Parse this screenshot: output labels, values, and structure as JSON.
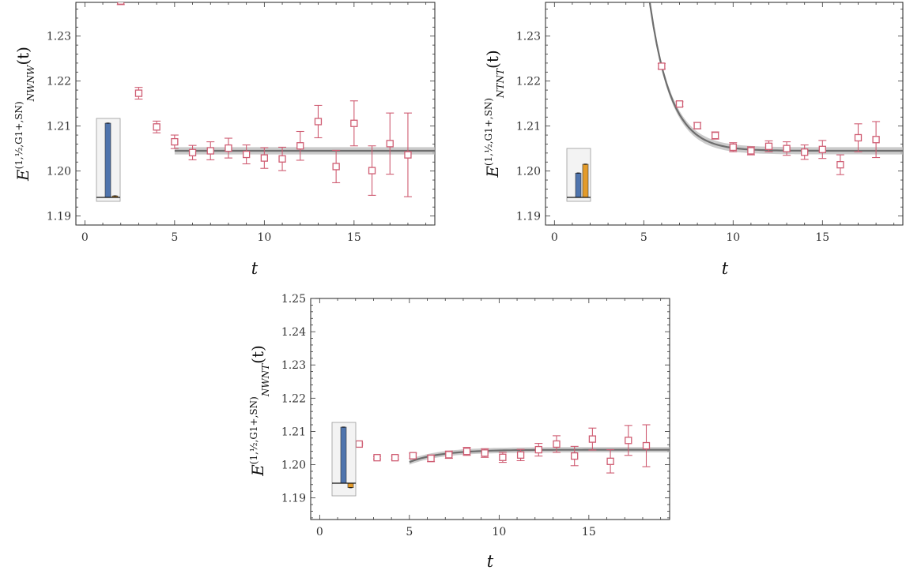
{
  "chart_data": [
    {
      "type": "scatter",
      "title": "",
      "xlabel": "t",
      "ylabel": "E",
      "ylabel_sub": "NWNW",
      "ylabel_sup": "(1,½,G1+,SN)",
      "ylabel_arg": "(t)",
      "xlim": [
        -0.5,
        19.5
      ],
      "ylim": [
        1.188,
        1.2375
      ],
      "xticks": [
        0,
        5,
        10,
        15
      ],
      "xtick_labels": [
        "0",
        "5",
        "10",
        "15"
      ],
      "yticks": [
        1.19,
        1.2,
        1.21,
        1.22,
        1.23
      ],
      "ytick_labels": [
        "1.19",
        "1.20",
        "1.21",
        "1.22",
        "1.23"
      ],
      "points": [
        {
          "x": 2,
          "y": 1.2378,
          "err": 0.0008
        },
        {
          "x": 3,
          "y": 1.2173,
          "err": 0.0013
        },
        {
          "x": 4,
          "y": 1.2098,
          "err": 0.0013
        },
        {
          "x": 5,
          "y": 1.2065,
          "err": 0.0015
        },
        {
          "x": 6,
          "y": 1.2041,
          "err": 0.0016
        },
        {
          "x": 7,
          "y": 1.2045,
          "err": 0.002
        },
        {
          "x": 8,
          "y": 1.2051,
          "err": 0.0022
        },
        {
          "x": 9,
          "y": 1.2037,
          "err": 0.0021
        },
        {
          "x": 10,
          "y": 1.2029,
          "err": 0.0023
        },
        {
          "x": 11,
          "y": 1.2027,
          "err": 0.0026
        },
        {
          "x": 12,
          "y": 1.2056,
          "err": 0.0032
        },
        {
          "x": 13,
          "y": 1.211,
          "err": 0.0036
        },
        {
          "x": 14,
          "y": 1.201,
          "err": 0.0036
        },
        {
          "x": 15,
          "y": 1.2106,
          "err": 0.005
        },
        {
          "x": 16,
          "y": 1.2001,
          "err": 0.0055
        },
        {
          "x": 17,
          "y": 1.2061,
          "err": 0.0068
        },
        {
          "x": 18,
          "y": 1.2036,
          "err": 0.0093
        }
      ],
      "fit": {
        "kind": "plateau",
        "x_start": 5,
        "x_end": 19.5,
        "value": 1.2045,
        "band": 0.0008
      },
      "inset": {
        "bars": [
          {
            "value": 1.0,
            "color": "#4f74ad"
          },
          {
            "value": 0.02,
            "color": "#e39b2a"
          }
        ]
      }
    },
    {
      "type": "scatter",
      "title": "",
      "xlabel": "t",
      "ylabel": "E",
      "ylabel_sub": "NTNT",
      "ylabel_sup": "(1,½,G1+,SN)",
      "ylabel_arg": "(t)",
      "xlim": [
        -0.5,
        19.5
      ],
      "ylim": [
        1.188,
        1.2375
      ],
      "xticks": [
        0,
        5,
        10,
        15
      ],
      "xtick_labels": [
        "0",
        "5",
        "10",
        "15"
      ],
      "yticks": [
        1.19,
        1.2,
        1.21,
        1.22,
        1.23
      ],
      "ytick_labels": [
        "1.19",
        "1.20",
        "1.21",
        "1.22",
        "1.23"
      ],
      "points": [
        {
          "x": 6,
          "y": 1.2233,
          "err": 0.0006
        },
        {
          "x": 7,
          "y": 1.2149,
          "err": 0.0005
        },
        {
          "x": 8,
          "y": 1.2101,
          "err": 0.0007
        },
        {
          "x": 9,
          "y": 1.2079,
          "err": 0.0008
        },
        {
          "x": 10,
          "y": 1.2053,
          "err": 0.001
        },
        {
          "x": 11,
          "y": 1.2045,
          "err": 0.0009
        },
        {
          "x": 12,
          "y": 1.2055,
          "err": 0.0012
        },
        {
          "x": 13,
          "y": 1.205,
          "err": 0.0015
        },
        {
          "x": 14,
          "y": 1.2042,
          "err": 0.0016
        },
        {
          "x": 15,
          "y": 1.2048,
          "err": 0.002
        },
        {
          "x": 16,
          "y": 1.2014,
          "err": 0.0022
        },
        {
          "x": 17,
          "y": 1.2074,
          "err": 0.0031
        },
        {
          "x": 18,
          "y": 1.207,
          "err": 0.004
        }
      ],
      "fit": {
        "kind": "decay",
        "x_start": 5,
        "x_end": 19.5,
        "plateau": 1.2045,
        "amp": 0.0188,
        "t0": 6,
        "tau": 1.18,
        "band": 0.0008
      },
      "inset": {
        "bars": [
          {
            "value": 0.55,
            "color": "#4f74ad"
          },
          {
            "value": 0.75,
            "color": "#e39b2a"
          }
        ]
      }
    },
    {
      "type": "scatter",
      "title": "",
      "xlabel": "t",
      "ylabel": "E",
      "ylabel_sub": "NWNT",
      "ylabel_sup": "(1,½,G1+,SN)",
      "ylabel_arg": "(t)",
      "xlim": [
        -0.5,
        19.5
      ],
      "ylim": [
        1.1835,
        1.25
      ],
      "xticks": [
        0,
        5,
        10,
        15
      ],
      "xtick_labels": [
        "0",
        "5",
        "10",
        "15"
      ],
      "yticks": [
        1.19,
        1.2,
        1.21,
        1.22,
        1.23,
        1.24,
        1.25
      ],
      "ytick_labels": [
        "1.19",
        "1.20",
        "1.21",
        "1.22",
        "1.23",
        "1.24",
        "1.25"
      ],
      "points": [
        {
          "x": 2.2,
          "y": 1.2062,
          "err": 0.0003
        },
        {
          "x": 3.2,
          "y": 1.2021,
          "err": 0.0004
        },
        {
          "x": 4.2,
          "y": 1.2021,
          "err": 0.0005
        },
        {
          "x": 5.2,
          "y": 1.2027,
          "err": 0.0008
        },
        {
          "x": 6.2,
          "y": 1.2019,
          "err": 0.001
        },
        {
          "x": 7.2,
          "y": 1.203,
          "err": 0.0011
        },
        {
          "x": 8.2,
          "y": 1.204,
          "err": 0.0012
        },
        {
          "x": 9.2,
          "y": 1.2035,
          "err": 0.0013
        },
        {
          "x": 10.2,
          "y": 1.2022,
          "err": 0.0015
        },
        {
          "x": 11.2,
          "y": 1.2029,
          "err": 0.0017
        },
        {
          "x": 12.2,
          "y": 1.2045,
          "err": 0.0019
        },
        {
          "x": 13.2,
          "y": 1.2062,
          "err": 0.0025
        },
        {
          "x": 14.2,
          "y": 1.2026,
          "err": 0.0029
        },
        {
          "x": 15.2,
          "y": 1.2077,
          "err": 0.0033
        },
        {
          "x": 16.2,
          "y": 1.201,
          "err": 0.0035
        },
        {
          "x": 17.2,
          "y": 1.2073,
          "err": 0.0045
        },
        {
          "x": 18.2,
          "y": 1.2057,
          "err": 0.0063
        }
      ],
      "fit": {
        "kind": "rise",
        "x_start": 5,
        "x_end": 19.5,
        "plateau": 1.2045,
        "amp": -0.0037,
        "t0": 5,
        "tau": 1.8,
        "band": 0.0008
      },
      "inset": {
        "bars": [
          {
            "value": 1.0,
            "color": "#4f74ad"
          },
          {
            "value": -0.08,
            "color": "#e39b2a"
          }
        ]
      }
    }
  ]
}
